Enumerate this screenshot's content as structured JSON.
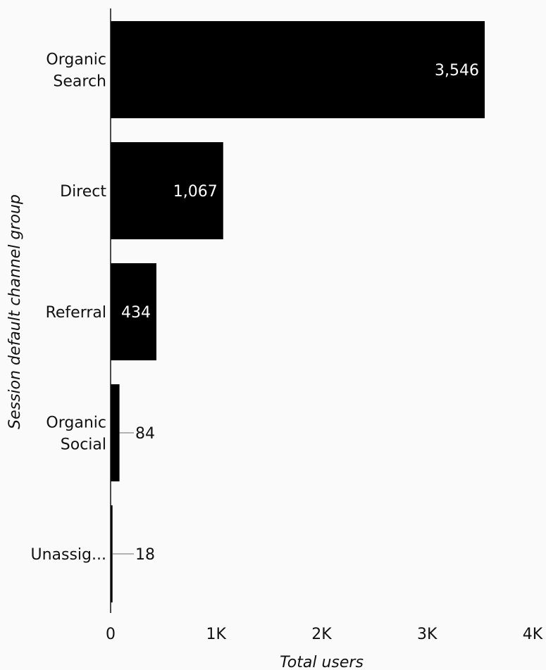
{
  "chart_data": {
    "type": "bar",
    "orientation": "horizontal",
    "categories": [
      [
        "Organic",
        "Search"
      ],
      [
        "Direct"
      ],
      [
        "Referral"
      ],
      [
        "Organic",
        "Social"
      ],
      [
        "Unassig..."
      ]
    ],
    "values": [
      3546,
      1067,
      434,
      84,
      18
    ],
    "value_labels": [
      "3,546",
      "1,067",
      "434",
      "84",
      "18"
    ],
    "xlabel": "Total users",
    "ylabel": "Session default channel group",
    "xlim": [
      0,
      4000
    ],
    "ticks": [
      0,
      1000,
      2000,
      3000,
      4000
    ],
    "tick_labels": [
      "0",
      "1K",
      "2K",
      "3K",
      "4K"
    ],
    "grid": false,
    "legend": "none",
    "colors": {
      "bar": "#000000",
      "background": "#fafafa",
      "axis": "#111111",
      "leader": "#999999",
      "inside_text": "#ffffff",
      "text": "#111111"
    }
  }
}
